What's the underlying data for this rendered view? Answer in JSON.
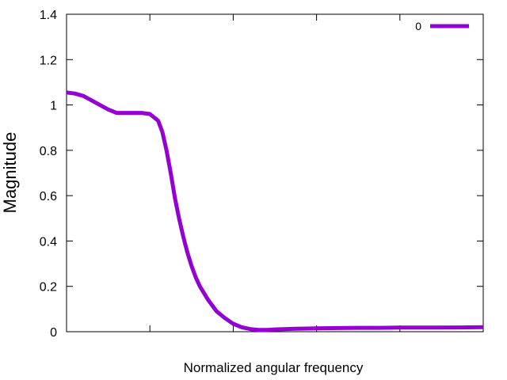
{
  "chart_data": {
    "type": "line",
    "xlabel": "Normalized angular frequency",
    "ylabel": "Magnitude",
    "xlim": [
      0,
      1
    ],
    "ylim": [
      0,
      1.4
    ],
    "yticks": [
      "0",
      "0.2",
      "0.4",
      "0.6",
      "0.8",
      "1",
      "1.2",
      "1.4"
    ],
    "ytick_values": [
      0,
      0.2,
      0.4,
      0.6,
      0.8,
      1.0,
      1.2,
      1.4
    ],
    "xtick_values": [
      0,
      0.2,
      0.4,
      0.6,
      0.8,
      1.0
    ],
    "grid": false,
    "legend_position": "top-right",
    "series": [
      {
        "name": "0",
        "color": "#9400d3",
        "x": [
          0,
          0.02,
          0.04,
          0.06,
          0.08,
          0.1,
          0.12,
          0.14,
          0.16,
          0.18,
          0.2,
          0.22,
          0.23,
          0.24,
          0.25,
          0.26,
          0.27,
          0.28,
          0.29,
          0.3,
          0.31,
          0.32,
          0.34,
          0.36,
          0.38,
          0.4,
          0.42,
          0.44,
          0.46,
          0.48,
          0.5,
          0.55,
          0.6,
          0.65,
          0.7,
          0.75,
          0.8,
          0.85,
          0.9,
          0.95,
          1.0
        ],
        "y": [
          1.055,
          1.05,
          1.04,
          1.02,
          1.0,
          0.98,
          0.965,
          0.965,
          0.965,
          0.965,
          0.96,
          0.93,
          0.88,
          0.8,
          0.7,
          0.59,
          0.5,
          0.42,
          0.35,
          0.29,
          0.24,
          0.2,
          0.14,
          0.09,
          0.06,
          0.035,
          0.02,
          0.012,
          0.008,
          0.008,
          0.01,
          0.013,
          0.015,
          0.016,
          0.017,
          0.017,
          0.018,
          0.018,
          0.018,
          0.019,
          0.02
        ]
      }
    ]
  }
}
